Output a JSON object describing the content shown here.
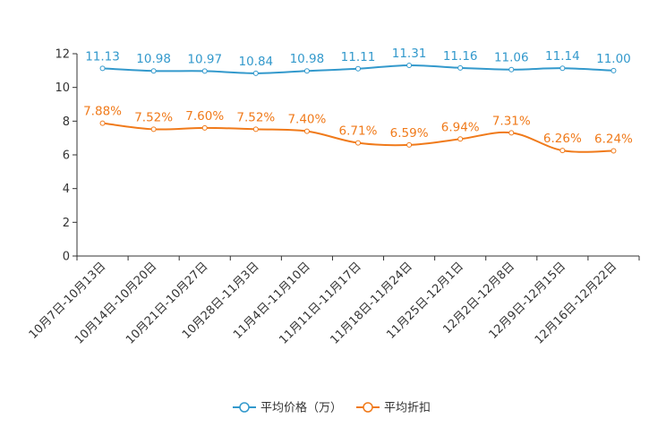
{
  "chart_data": {
    "type": "line",
    "title": "",
    "xlabel": "",
    "ylabel": "",
    "ylim": [
      0,
      12
    ],
    "yticks": [
      0,
      2,
      4,
      6,
      8,
      10,
      12
    ],
    "categories": [
      "10月7日-10月13日",
      "10月14日-10月20日",
      "10月21日-10月27日",
      "10月28日-11月3日",
      "11月4日-11月10日",
      "11月11日-11月17日",
      "11月18日-11月24日",
      "11月25日-12月1日",
      "12月2日-12月8日",
      "12月9日-12月15日",
      "12月16日-12月22日"
    ],
    "series": [
      {
        "name": "平均价格（万）",
        "color": "#3399cc",
        "values": [
          11.13,
          10.98,
          10.97,
          10.84,
          10.98,
          11.11,
          11.31,
          11.16,
          11.06,
          11.14,
          11.0
        ],
        "labels": [
          "11.13",
          "10.98",
          "10.97",
          "10.84",
          "10.98",
          "11.11",
          "11.31",
          "11.16",
          "11.06",
          "11.14",
          "11.00"
        ]
      },
      {
        "name": "平均折扣",
        "color": "#f07a1a",
        "values": [
          7.88,
          7.52,
          7.6,
          7.52,
          7.4,
          6.71,
          6.59,
          6.94,
          7.31,
          6.26,
          6.24
        ],
        "labels": [
          "7.88%",
          "7.52%",
          "7.60%",
          "7.52%",
          "7.40%",
          "6.71%",
          "6.59%",
          "6.94%",
          "7.31%",
          "6.26%",
          "6.24%"
        ]
      }
    ],
    "legend_position": "bottom-center",
    "grid": false
  }
}
